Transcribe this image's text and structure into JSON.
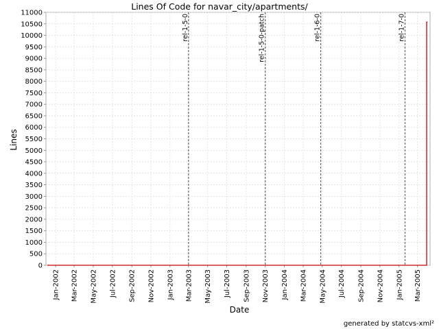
{
  "chart_data": {
    "type": "line",
    "title": "Lines Of Code for navar_city/apartments/",
    "xlabel": "Date",
    "ylabel": "Lines",
    "xlim": [
      "2001-12-01",
      "2005-04-10"
    ],
    "ylim": [
      0,
      11000
    ],
    "yticks": [
      0,
      500,
      1000,
      1500,
      2000,
      2500,
      3000,
      3500,
      4000,
      4500,
      5000,
      5500,
      6000,
      6500,
      7000,
      7500,
      8000,
      8500,
      9000,
      9500,
      10000,
      10500,
      11000
    ],
    "xticks": [
      {
        "label": "Jan-2002",
        "date": "2002-01-01"
      },
      {
        "label": "Mar-2002",
        "date": "2002-03-01"
      },
      {
        "label": "May-2002",
        "date": "2002-05-01"
      },
      {
        "label": "Jul-2002",
        "date": "2002-07-01"
      },
      {
        "label": "Sep-2002",
        "date": "2002-09-01"
      },
      {
        "label": "Nov-2002",
        "date": "2002-11-01"
      },
      {
        "label": "Jan-2003",
        "date": "2003-01-01"
      },
      {
        "label": "Mar-2003",
        "date": "2003-03-01"
      },
      {
        "label": "May-2003",
        "date": "2003-05-01"
      },
      {
        "label": "Jul-2003",
        "date": "2003-07-01"
      },
      {
        "label": "Sep-2003",
        "date": "2003-09-01"
      },
      {
        "label": "Nov-2003",
        "date": "2003-11-01"
      },
      {
        "label": "Jan-2004",
        "date": "2004-01-01"
      },
      {
        "label": "Mar-2004",
        "date": "2004-03-01"
      },
      {
        "label": "May-2004",
        "date": "2004-05-01"
      },
      {
        "label": "Jul-2004",
        "date": "2004-07-01"
      },
      {
        "label": "Sep-2004",
        "date": "2004-09-01"
      },
      {
        "label": "Nov-2004",
        "date": "2004-11-01"
      },
      {
        "label": "Jan-2005",
        "date": "2005-01-01"
      },
      {
        "label": "Mar-2005",
        "date": "2005-03-01"
      }
    ],
    "grid": true,
    "series": [
      {
        "color": "#cc0000",
        "points": [
          {
            "x": "2001-12-05",
            "y": 0
          },
          {
            "x": "2005-03-30",
            "y": 0
          },
          {
            "x": "2005-03-30",
            "y": 10580
          },
          {
            "x": "2005-04-02",
            "y": 10580
          }
        ]
      }
    ],
    "markers": [
      {
        "label": "rel-1-5-0",
        "date": "2003-03-01"
      },
      {
        "label": "rel-1-5-0-patch",
        "date": "2003-11-01"
      },
      {
        "label": "rel-1-6-0",
        "date": "2004-04-26"
      },
      {
        "label": "rel-1-7-0",
        "date": "2005-01-20"
      }
    ],
    "credit": "generated by statcvs-xml²"
  }
}
